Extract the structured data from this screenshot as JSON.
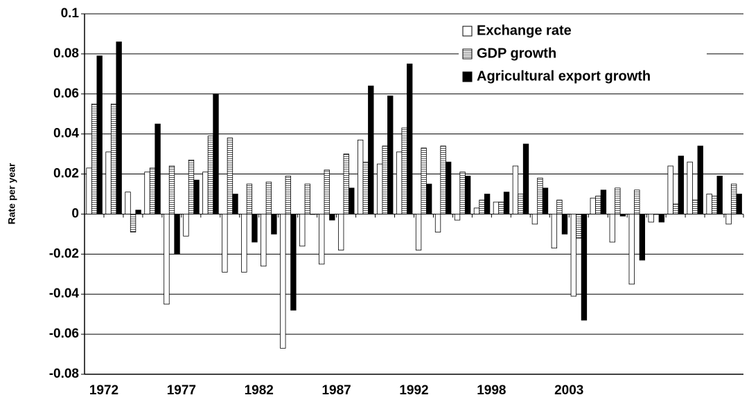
{
  "chart_data": {
    "type": "bar",
    "y_label": "Rate per year",
    "categories": [
      "1972",
      null,
      null,
      null,
      "1977",
      null,
      null,
      null,
      "1982",
      null,
      null,
      null,
      "1987",
      null,
      null,
      null,
      "1992",
      null,
      null,
      null,
      "1998",
      null,
      null,
      null,
      "2003",
      null,
      null,
      null,
      null,
      null,
      null,
      null,
      null,
      null
    ],
    "series": [
      {
        "name": "Exchange rate",
        "color": "#ffffff",
        "values": [
          0.023,
          0.031,
          0.011,
          0.021,
          -0.045,
          -0.011,
          0.021,
          -0.029,
          -0.029,
          -0.026,
          -0.067,
          -0.016,
          -0.025,
          -0.018,
          0.037,
          0.025,
          0.031,
          -0.018,
          -0.009,
          -0.003,
          0.003,
          0.006,
          0.024,
          -0.005,
          -0.017,
          -0.041,
          0.008,
          -0.014,
          -0.035,
          -0.004,
          0.024,
          0.026,
          0.01,
          -0.005
        ]
      },
      {
        "name": "GDP growth",
        "color": "#ffffff",
        "pattern": "horizontal-lines",
        "values": [
          0.055,
          0.055,
          -0.009,
          0.023,
          0.024,
          0.027,
          0.039,
          0.038,
          0.015,
          0.016,
          0.019,
          0.015,
          0.022,
          0.03,
          0.026,
          0.034,
          0.043,
          0.033,
          0.034,
          0.021,
          0.007,
          0.006,
          0.01,
          0.018,
          0.007,
          -0.012,
          0.009,
          0.013,
          0.012,
          0.0,
          0.005,
          0.007,
          0.009,
          0.015
        ]
      },
      {
        "name": "Agricultural export growth",
        "color": "#000000",
        "values": [
          0.079,
          0.086,
          0.002,
          0.045,
          -0.02,
          0.017,
          0.06,
          0.01,
          -0.014,
          -0.01,
          -0.048,
          0.0,
          -0.003,
          0.013,
          0.064,
          0.059,
          0.075,
          0.015,
          0.026,
          0.019,
          0.01,
          0.011,
          0.035,
          0.013,
          -0.01,
          -0.053,
          0.012,
          -0.001,
          -0.023,
          -0.004,
          0.029,
          0.034,
          0.019,
          0.01
        ]
      }
    ],
    "ylim": [
      -0.08,
      0.1
    ],
    "yticks": [
      -0.08,
      -0.06,
      -0.04,
      -0.02,
      0,
      0.02,
      0.04,
      0.06,
      0.08,
      0.1
    ],
    "grid": true,
    "legend": "top-right"
  }
}
